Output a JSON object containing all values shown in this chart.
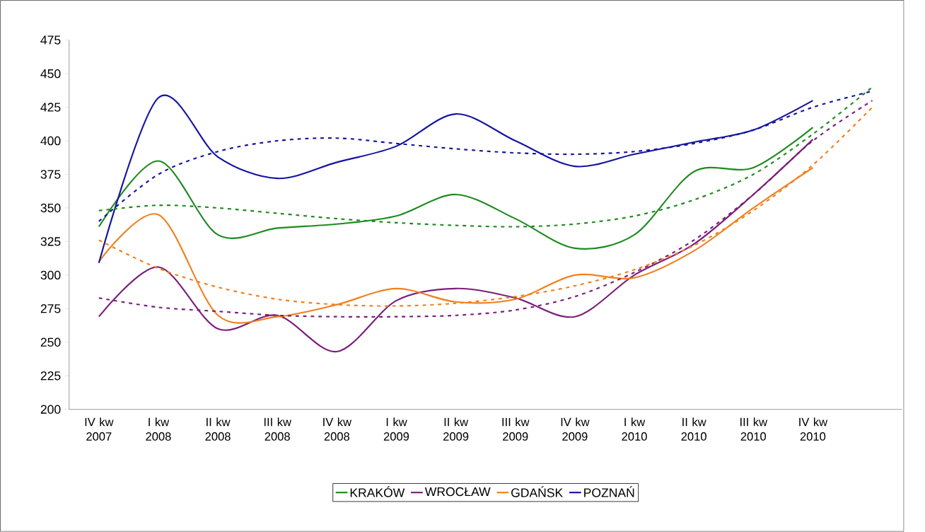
{
  "chart_data": {
    "type": "line",
    "categories": [
      "IV kw 2007",
      "I kw 2008",
      "II kw 2008",
      "III kw 2008",
      "IV kw 2008",
      "I kw 2009",
      "II kw 2009",
      "III kw 2009",
      "IV kw 2009",
      "I kw 2010",
      "II kw 2010",
      "III kw 2010",
      "IV kw 2010",
      null
    ],
    "ylim": [
      200,
      475
    ],
    "yticks": [
      200,
      225,
      250,
      275,
      300,
      325,
      350,
      375,
      400,
      425,
      450,
      475
    ],
    "legend": "bottom",
    "grid": false,
    "series": [
      {
        "name": "KRAKÓW",
        "color": "#1f8a1f",
        "values": [
          336,
          385,
          330,
          335,
          338,
          344,
          360,
          342,
          320,
          330,
          377,
          380,
          410,
          null
        ]
      },
      {
        "name": "WROCŁAW",
        "color": "#7a1f7a",
        "values": [
          269,
          306,
          260,
          270,
          243,
          281,
          290,
          283,
          269,
          300,
          323,
          360,
          401,
          null
        ]
      },
      {
        "name": "GDAŃSK",
        "color": "#f0801e",
        "values": [
          310,
          345,
          270,
          269,
          278,
          290,
          280,
          282,
          300,
          298,
          318,
          350,
          380,
          null
        ]
      },
      {
        "name": "POZNAŃ",
        "color": "#1414a0",
        "values": [
          309,
          432,
          388,
          372,
          384,
          396,
          420,
          400,
          381,
          390,
          399,
          408,
          430,
          null
        ]
      },
      {
        "type": "line",
        "line_style": "dashed",
        "color": "#1f8a1f",
        "values": [
          348,
          352,
          350,
          346,
          342,
          339,
          337,
          336,
          338,
          344,
          356,
          375,
          405,
          440
        ]
      },
      {
        "type": "line",
        "line_style": "dashed",
        "color": "#7a1f7a",
        "values": [
          283,
          276,
          273,
          270,
          269,
          269,
          270,
          274,
          284,
          302,
          326,
          360,
          400,
          430
        ]
      },
      {
        "type": "line",
        "line_style": "dashed",
        "color": "#f0801e",
        "values": [
          326,
          305,
          291,
          282,
          278,
          277,
          279,
          284,
          292,
          304,
          322,
          348,
          382,
          425
        ]
      },
      {
        "type": "line",
        "line_style": "dashed",
        "color": "#1414a0",
        "values": [
          340,
          375,
          392,
          400,
          402,
          398,
          394,
          391,
          390,
          392,
          398,
          408,
          425,
          437
        ]
      }
    ]
  }
}
